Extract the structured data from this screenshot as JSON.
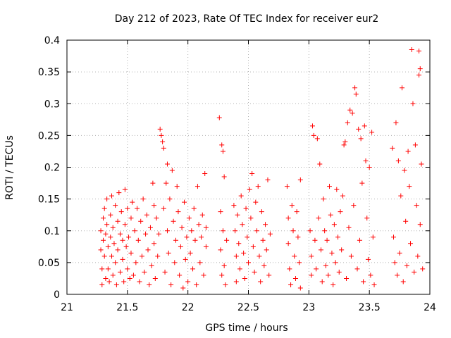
{
  "chart_data": {
    "type": "scatter",
    "title": "Day 212 of 2023, Rate Of TEC Index for receiver eur2",
    "xlabel": "GPS time / hours",
    "ylabel": "ROTI / TECUs",
    "xlim": [
      21,
      24
    ],
    "ylim": [
      0,
      0.4
    ],
    "xticks": [
      "21",
      "21.5",
      "22",
      "22.5",
      "23",
      "23.5",
      "24"
    ],
    "yticks": [
      "0",
      "0.05",
      "0.1",
      "0.15",
      "0.2",
      "0.25",
      "0.3",
      "0.35",
      "0.4"
    ],
    "grid": true,
    "marker": "+",
    "color": "#ff0000",
    "series": [
      {
        "points": [
          [
            21.28,
            0.1
          ],
          [
            21.28,
            0.07
          ],
          [
            21.29,
            0.04
          ],
          [
            21.29,
            0.015
          ],
          [
            21.3,
            0.12
          ],
          [
            21.3,
            0.085
          ],
          [
            21.31,
            0.135
          ],
          [
            21.31,
            0.06
          ],
          [
            21.32,
            0.025
          ],
          [
            21.32,
            0.095
          ],
          [
            21.33,
            0.15
          ],
          [
            21.33,
            0.11
          ],
          [
            21.34,
            0.075
          ],
          [
            21.34,
            0.04
          ],
          [
            21.35,
            0.02
          ],
          [
            21.36,
            0.125
          ],
          [
            21.36,
            0.09
          ],
          [
            21.37,
            0.06
          ],
          [
            21.37,
            0.155
          ],
          [
            21.38,
            0.03
          ],
          [
            21.38,
            0.105
          ],
          [
            21.39,
            0.08
          ],
          [
            21.4,
            0.14
          ],
          [
            21.4,
            0.05
          ],
          [
            21.41,
            0.015
          ],
          [
            21.42,
            0.115
          ],
          [
            21.42,
            0.07
          ],
          [
            21.43,
            0.16
          ],
          [
            21.44,
            0.035
          ],
          [
            21.44,
            0.095
          ],
          [
            21.45,
            0.13
          ],
          [
            21.46,
            0.055
          ],
          [
            21.46,
            0.085
          ],
          [
            21.47,
            0.02
          ],
          [
            21.48,
            0.165
          ],
          [
            21.48,
            0.11
          ],
          [
            21.49,
            0.075
          ],
          [
            21.5,
            0.04
          ],
          [
            21.5,
            0.135
          ],
          [
            21.51,
            0.09
          ],
          [
            21.52,
            0.025
          ],
          [
            21.53,
            0.12
          ],
          [
            21.53,
            0.065
          ],
          [
            21.54,
            0.145
          ],
          [
            21.55,
            0.03
          ],
          [
            21.56,
            0.1
          ],
          [
            21.57,
            0.05
          ],
          [
            21.58,
            0.135
          ],
          [
            21.59,
            0.085
          ],
          [
            21.6,
            0.02
          ],
          [
            21.61,
            0.115
          ],
          [
            21.62,
            0.06
          ],
          [
            21.63,
            0.15
          ],
          [
            21.64,
            0.035
          ],
          [
            21.65,
            0.095
          ],
          [
            21.66,
            0.125
          ],
          [
            21.67,
            0.07
          ],
          [
            21.68,
            0.015
          ],
          [
            21.69,
            0.105
          ],
          [
            21.7,
            0.045
          ],
          [
            21.71,
            0.175
          ],
          [
            21.72,
            0.14
          ],
          [
            21.72,
            0.08
          ],
          [
            21.73,
            0.025
          ],
          [
            21.74,
            0.12
          ],
          [
            21.75,
            0.06
          ],
          [
            21.76,
            0.095
          ],
          [
            21.77,
            0.26
          ],
          [
            21.78,
            0.25
          ],
          [
            21.79,
            0.24
          ],
          [
            21.8,
            0.23
          ],
          [
            21.8,
            0.135
          ],
          [
            21.81,
            0.035
          ],
          [
            21.82,
            0.175
          ],
          [
            21.83,
            0.205
          ],
          [
            21.83,
            0.1
          ],
          [
            21.84,
            0.065
          ],
          [
            21.85,
            0.15
          ],
          [
            21.86,
            0.015
          ],
          [
            21.87,
            0.195
          ],
          [
            21.88,
            0.115
          ],
          [
            21.89,
            0.05
          ],
          [
            21.9,
            0.085
          ],
          [
            21.91,
            0.17
          ],
          [
            21.92,
            0.13
          ],
          [
            21.93,
            0.03
          ],
          [
            21.94,
            0.075
          ],
          [
            21.95,
            0.105
          ],
          [
            21.96,
            0.01
          ],
          [
            21.97,
            0.145
          ],
          [
            21.98,
            0.055
          ],
          [
            21.99,
            0.09
          ],
          [
            22.0,
            0.02
          ],
          [
            22.01,
            0.12
          ],
          [
            22.02,
            0.065
          ],
          [
            22.03,
            0.1
          ],
          [
            22.04,
            0.04
          ],
          [
            22.05,
            0.135
          ],
          [
            22.06,
            0.085
          ],
          [
            22.07,
            0.015
          ],
          [
            22.08,
            0.17
          ],
          [
            22.09,
            0.11
          ],
          [
            22.1,
            0.05
          ],
          [
            22.11,
            0.09
          ],
          [
            22.12,
            0.125
          ],
          [
            22.13,
            0.03
          ],
          [
            22.14,
            0.19
          ],
          [
            22.15,
            0.075
          ],
          [
            22.15,
            0.105
          ],
          [
            22.26,
            0.278
          ],
          [
            22.27,
            0.13
          ],
          [
            22.27,
            0.07
          ],
          [
            22.28,
            0.235
          ],
          [
            22.28,
            0.03
          ],
          [
            22.29,
            0.225
          ],
          [
            22.29,
            0.1
          ],
          [
            22.3,
            0.045
          ],
          [
            22.3,
            0.185
          ],
          [
            22.31,
            0.015
          ],
          [
            22.32,
            0.085
          ],
          [
            22.38,
            0.14
          ],
          [
            22.39,
            0.1
          ],
          [
            22.4,
            0.06
          ],
          [
            22.4,
            0.02
          ],
          [
            22.41,
            0.125
          ],
          [
            22.42,
            0.08
          ],
          [
            22.43,
            0.04
          ],
          [
            22.44,
            0.155
          ],
          [
            22.45,
            0.11
          ],
          [
            22.46,
            0.065
          ],
          [
            22.47,
            0.025
          ],
          [
            22.48,
            0.135
          ],
          [
            22.49,
            0.09
          ],
          [
            22.5,
            0.05
          ],
          [
            22.51,
            0.165
          ],
          [
            22.52,
            0.12
          ],
          [
            22.53,
            0.19
          ],
          [
            22.54,
            0.075
          ],
          [
            22.55,
            0.035
          ],
          [
            22.56,
            0.145
          ],
          [
            22.57,
            0.1
          ],
          [
            22.58,
            0.17
          ],
          [
            22.59,
            0.06
          ],
          [
            22.6,
            0.02
          ],
          [
            22.61,
            0.13
          ],
          [
            22.62,
            0.085
          ],
          [
            22.63,
            0.045
          ],
          [
            22.64,
            0.11
          ],
          [
            22.65,
            0.07
          ],
          [
            22.66,
            0.18
          ],
          [
            22.67,
            0.03
          ],
          [
            22.68,
            0.095
          ],
          [
            22.82,
            0.17
          ],
          [
            22.83,
            0.12
          ],
          [
            22.83,
            0.08
          ],
          [
            22.84,
            0.04
          ],
          [
            22.85,
            0.015
          ],
          [
            22.86,
            0.14
          ],
          [
            22.87,
            0.1
          ],
          [
            22.88,
            0.06
          ],
          [
            22.89,
            0.025
          ],
          [
            22.9,
            0.13
          ],
          [
            22.91,
            0.09
          ],
          [
            22.92,
            0.05
          ],
          [
            22.93,
            0.18
          ],
          [
            22.93,
            0.01
          ],
          [
            23.01,
            0.1
          ],
          [
            23.02,
            0.06
          ],
          [
            23.02,
            0.03
          ],
          [
            23.03,
            0.265
          ],
          [
            23.04,
            0.25
          ],
          [
            23.05,
            0.085
          ],
          [
            23.06,
            0.04
          ],
          [
            23.07,
            0.245
          ],
          [
            23.08,
            0.12
          ],
          [
            23.09,
            0.205
          ],
          [
            23.1,
            0.07
          ],
          [
            23.11,
            0.02
          ],
          [
            23.12,
            0.15
          ],
          [
            23.13,
            0.1
          ],
          [
            23.14,
            0.045
          ],
          [
            23.15,
            0.085
          ],
          [
            23.16,
            0.03
          ],
          [
            23.17,
            0.17
          ],
          [
            23.18,
            0.125
          ],
          [
            23.19,
            0.065
          ],
          [
            23.2,
            0.015
          ],
          [
            23.21,
            0.11
          ],
          [
            23.22,
            0.05
          ],
          [
            23.23,
            0.165
          ],
          [
            23.24,
            0.09
          ],
          [
            23.25,
            0.035
          ],
          [
            23.26,
            0.13
          ],
          [
            23.27,
            0.07
          ],
          [
            23.28,
            0.155
          ],
          [
            23.29,
            0.235
          ],
          [
            23.3,
            0.24
          ],
          [
            23.31,
            0.025
          ],
          [
            23.32,
            0.27
          ],
          [
            23.33,
            0.105
          ],
          [
            23.34,
            0.29
          ],
          [
            23.35,
            0.06
          ],
          [
            23.36,
            0.285
          ],
          [
            23.37,
            0.14
          ],
          [
            23.38,
            0.325
          ],
          [
            23.39,
            0.315
          ],
          [
            23.4,
            0.04
          ],
          [
            23.41,
            0.26
          ],
          [
            23.42,
            0.085
          ],
          [
            23.43,
            0.245
          ],
          [
            23.44,
            0.175
          ],
          [
            23.45,
            0.02
          ],
          [
            23.46,
            0.265
          ],
          [
            23.47,
            0.21
          ],
          [
            23.48,
            0.12
          ],
          [
            23.49,
            0.055
          ],
          [
            23.5,
            0.2
          ],
          [
            23.51,
            0.03
          ],
          [
            23.52,
            0.255
          ],
          [
            23.53,
            0.09
          ],
          [
            23.54,
            0.015
          ],
          [
            23.69,
            0.23
          ],
          [
            23.7,
            0.09
          ],
          [
            23.71,
            0.05
          ],
          [
            23.72,
            0.27
          ],
          [
            23.73,
            0.03
          ],
          [
            23.74,
            0.21
          ],
          [
            23.75,
            0.065
          ],
          [
            23.76,
            0.155
          ],
          [
            23.77,
            0.325
          ],
          [
            23.78,
            0.02
          ],
          [
            23.79,
            0.195
          ],
          [
            23.8,
            0.115
          ],
          [
            23.81,
            0.045
          ],
          [
            23.82,
            0.225
          ],
          [
            23.83,
            0.17
          ],
          [
            23.84,
            0.08
          ],
          [
            23.85,
            0.385
          ],
          [
            23.86,
            0.3
          ],
          [
            23.87,
            0.035
          ],
          [
            23.88,
            0.235
          ],
          [
            23.89,
            0.14
          ],
          [
            23.9,
            0.06
          ],
          [
            23.91,
            0.383
          ],
          [
            23.91,
            0.345
          ],
          [
            23.92,
            0.355
          ],
          [
            23.92,
            0.11
          ],
          [
            23.93,
            0.205
          ],
          [
            23.94,
            0.04
          ]
        ]
      }
    ]
  }
}
